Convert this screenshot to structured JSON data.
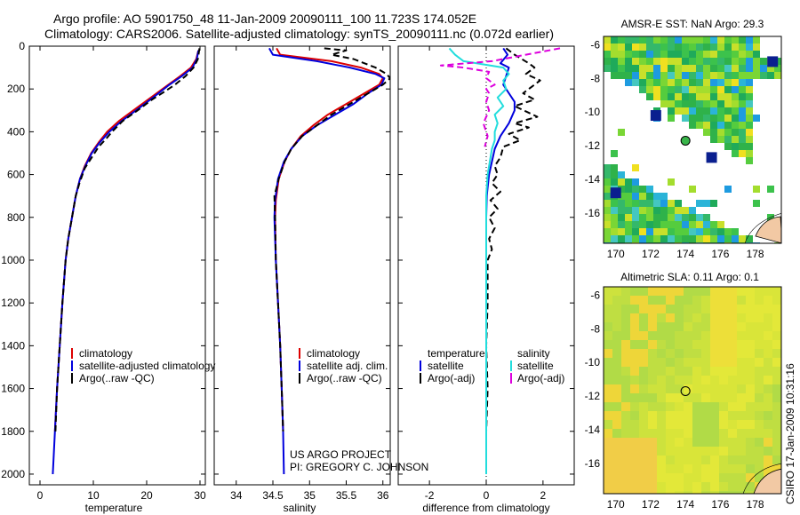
{
  "header": {
    "title_line1": "Argo profile: AO 5901750_48 11-Jan-2009 20090111_100 11.723S 174.052E",
    "title_line2": "Climatology: CARS2006. Satellite-adjusted climatology: synTS_20090111.nc (0.072d earlier)"
  },
  "side_stamp": "CSIRO 17-Jan-2009 10:31:16",
  "project": {
    "line1": "US ARGO PROJECT",
    "line2": "PI: GREGORY C. JOHNSON"
  },
  "colors": {
    "clim": "#dd0000",
    "sat": "#0000dd",
    "argo": "#000000",
    "cyan": "#22dddd",
    "magenta": "#dd00dd"
  },
  "chart_data": [
    {
      "type": "line",
      "id": "temperature",
      "xlabel": "temperature",
      "xlim": [
        -2,
        31
      ],
      "ylim": [
        2050,
        0
      ],
      "xticks": [
        "0",
        "10",
        "20",
        "30"
      ],
      "yticks": [
        "0",
        "200",
        "400",
        "600",
        "800",
        "1000",
        "1200",
        "1400",
        "1600",
        "1800",
        "2000"
      ],
      "legend": [
        "climatology",
        "satellite-adjusted climatology",
        "Argo(..raw -QC)"
      ],
      "series": [
        {
          "name": "climatology",
          "style": "clim",
          "points": [
            [
              29.7,
              20
            ],
            [
              29.3,
              60
            ],
            [
              28.3,
              100
            ],
            [
              26.3,
              140
            ],
            [
              23.8,
              185
            ],
            [
              20.8,
              240
            ],
            [
              17.5,
              300
            ],
            [
              14.8,
              350
            ],
            [
              12.6,
              400
            ],
            [
              11.0,
              450
            ],
            [
              9.6,
              500
            ],
            [
              8.4,
              560
            ],
            [
              7.5,
              620
            ],
            [
              6.7,
              700
            ],
            [
              6.0,
              800
            ],
            [
              5.3,
              900
            ],
            [
              4.8,
              1000
            ],
            [
              4.2,
              1200
            ],
            [
              3.7,
              1400
            ],
            [
              3.2,
              1600
            ],
            [
              2.8,
              1800
            ]
          ]
        },
        {
          "name": "satellite-adjusted climatology",
          "style": "sat",
          "points": [
            [
              29.7,
              20
            ],
            [
              29.4,
              60
            ],
            [
              28.6,
              100
            ],
            [
              26.6,
              140
            ],
            [
              24.0,
              185
            ],
            [
              21.2,
              240
            ],
            [
              18.0,
              300
            ],
            [
              15.3,
              350
            ],
            [
              13.0,
              400
            ],
            [
              11.2,
              450
            ],
            [
              9.7,
              500
            ],
            [
              8.5,
              560
            ],
            [
              7.5,
              620
            ],
            [
              6.7,
              700
            ],
            [
              6.0,
              800
            ],
            [
              5.3,
              900
            ],
            [
              4.8,
              1000
            ],
            [
              4.2,
              1200
            ],
            [
              3.7,
              1400
            ],
            [
              3.2,
              1600
            ],
            [
              2.8,
              1800
            ],
            [
              2.4,
              2000
            ]
          ]
        },
        {
          "name": "Argo(..raw -QC)",
          "style": "argo",
          "points": [
            [
              29.9,
              10
            ],
            [
              29.6,
              60
            ],
            [
              28.8,
              100
            ],
            [
              27.3,
              140
            ],
            [
              25.3,
              180
            ],
            [
              23.5,
              210
            ],
            [
              21.0,
              250
            ],
            [
              18.3,
              300
            ],
            [
              15.5,
              350
            ],
            [
              13.5,
              400
            ],
            [
              12.5,
              430
            ],
            [
              11.0,
              470
            ],
            [
              9.7,
              520
            ],
            [
              8.4,
              570
            ],
            [
              7.4,
              640
            ],
            [
              6.7,
              700
            ],
            [
              6.0,
              800
            ],
            [
              5.3,
              900
            ],
            [
              4.8,
              1000
            ],
            [
              4.2,
              1200
            ],
            [
              3.7,
              1400
            ],
            [
              3.2,
              1600
            ],
            [
              2.9,
              1800
            ]
          ]
        }
      ]
    },
    {
      "type": "line",
      "id": "salinity",
      "xlabel": "salinity",
      "xlim": [
        33.7,
        36.1
      ],
      "ylim": [
        2050,
        0
      ],
      "xticks": [
        "34",
        "34.5",
        "35",
        "35.5",
        "36"
      ],
      "legend": [
        "climatology",
        "satellite adj. clim.",
        "Argo(..raw -QC)"
      ],
      "series": [
        {
          "name": "climatology",
          "style": "clim",
          "points": [
            [
              34.55,
              10
            ],
            [
              34.6,
              40
            ],
            [
              35.3,
              70
            ],
            [
              35.7,
              100
            ],
            [
              35.95,
              130
            ],
            [
              36.0,
              150
            ],
            [
              35.95,
              180
            ],
            [
              35.75,
              220
            ],
            [
              35.5,
              270
            ],
            [
              35.25,
              320
            ],
            [
              35.05,
              370
            ],
            [
              34.88,
              420
            ],
            [
              34.75,
              480
            ],
            [
              34.66,
              540
            ],
            [
              34.58,
              620
            ],
            [
              34.54,
              720
            ],
            [
              34.53,
              800
            ],
            [
              34.54,
              1000
            ],
            [
              34.57,
              1200
            ],
            [
              34.6,
              1400
            ],
            [
              34.62,
              1600
            ],
            [
              34.64,
              1800
            ]
          ]
        },
        {
          "name": "satellite adj. clim.",
          "style": "sat",
          "points": [
            [
              34.45,
              10
            ],
            [
              34.5,
              40
            ],
            [
              35.1,
              70
            ],
            [
              35.55,
              100
            ],
            [
              35.9,
              130
            ],
            [
              36.02,
              150
            ],
            [
              35.98,
              180
            ],
            [
              35.8,
              220
            ],
            [
              35.6,
              270
            ],
            [
              35.35,
              320
            ],
            [
              35.1,
              370
            ],
            [
              34.9,
              420
            ],
            [
              34.75,
              480
            ],
            [
              34.65,
              540
            ],
            [
              34.57,
              620
            ],
            [
              34.53,
              720
            ],
            [
              34.52,
              800
            ],
            [
              34.54,
              1000
            ],
            [
              34.57,
              1200
            ],
            [
              34.6,
              1400
            ],
            [
              34.62,
              1600
            ],
            [
              34.64,
              1800
            ],
            [
              34.65,
              2000
            ]
          ]
        },
        {
          "name": "Argo(..raw -QC)",
          "style": "argo",
          "points": [
            [
              35.2,
              10
            ],
            [
              35.5,
              20
            ],
            [
              35.3,
              40
            ],
            [
              35.6,
              60
            ],
            [
              35.9,
              100
            ],
            [
              36.05,
              130
            ],
            [
              36.1,
              150
            ],
            [
              36.0,
              180
            ],
            [
              35.9,
              200
            ],
            [
              35.75,
              230
            ],
            [
              35.55,
              270
            ],
            [
              35.3,
              320
            ],
            [
              35.1,
              370
            ],
            [
              34.9,
              420
            ],
            [
              34.75,
              480
            ],
            [
              34.66,
              540
            ],
            [
              34.58,
              620
            ],
            [
              34.52,
              700
            ],
            [
              34.53,
              800
            ],
            [
              34.54,
              1000
            ],
            [
              34.57,
              1200
            ],
            [
              34.6,
              1400
            ],
            [
              34.62,
              1600
            ],
            [
              34.64,
              1800
            ]
          ]
        }
      ]
    },
    {
      "type": "line",
      "id": "difference",
      "xlabel": "difference from climatology",
      "xlim": [
        -3.1,
        3.1
      ],
      "ylim": [
        2050,
        0
      ],
      "xticks": [
        "-2",
        "0",
        "2"
      ],
      "legend_headers": [
        "temperature",
        "salinity"
      ],
      "legend": [
        "satellite",
        "Argo(-adj)",
        "satellite",
        "Argo(-adj)"
      ],
      "series": [
        {
          "name": "temperature satellite",
          "style": "sat",
          "points": [
            [
              0.6,
              10
            ],
            [
              0.75,
              40
            ],
            [
              0.5,
              80
            ],
            [
              0.8,
              100
            ],
            [
              0.7,
              140
            ],
            [
              0.6,
              180
            ],
            [
              0.8,
              220
            ],
            [
              1.0,
              260
            ],
            [
              1.0,
              300
            ],
            [
              0.8,
              360
            ],
            [
              0.5,
              420
            ],
            [
              0.3,
              480
            ],
            [
              0.2,
              540
            ],
            [
              0.1,
              600
            ],
            [
              0.02,
              700
            ],
            [
              0.0,
              800
            ],
            [
              0.0,
              1000
            ],
            [
              0.0,
              1200
            ],
            [
              0.0,
              1400
            ],
            [
              0.0,
              1600
            ],
            [
              0.0,
              1800
            ],
            [
              0.0,
              2000
            ]
          ]
        },
        {
          "name": "temperature Argo(-adj)",
          "style": "argo",
          "points": [
            [
              0.7,
              10
            ],
            [
              1.0,
              40
            ],
            [
              1.5,
              80
            ],
            [
              1.7,
              100
            ],
            [
              1.4,
              130
            ],
            [
              1.9,
              160
            ],
            [
              1.6,
              190
            ],
            [
              1.3,
              220
            ],
            [
              1.7,
              250
            ],
            [
              1.0,
              280
            ],
            [
              1.8,
              330
            ],
            [
              1.0,
              360
            ],
            [
              1.5,
              380
            ],
            [
              0.8,
              410
            ],
            [
              1.2,
              440
            ],
            [
              0.6,
              470
            ],
            [
              0.5,
              520
            ],
            [
              0.3,
              560
            ],
            [
              0.4,
              600
            ],
            [
              0.2,
              640
            ],
            [
              0.5,
              680
            ],
            [
              0.15,
              720
            ],
            [
              0.4,
              760
            ],
            [
              0.1,
              800
            ],
            [
              0.3,
              850
            ],
            [
              0.1,
              900
            ],
            [
              0.2,
              950
            ],
            [
              0.05,
              1000
            ],
            [
              0.05,
              1200
            ],
            [
              0.0,
              1400
            ],
            [
              0.05,
              1600
            ],
            [
              0.0,
              1800
            ]
          ]
        },
        {
          "name": "salinity satellite",
          "style": "cyan",
          "points": [
            [
              -1.3,
              10
            ],
            [
              -1.1,
              40
            ],
            [
              -0.8,
              70
            ],
            [
              0.6,
              100
            ],
            [
              0.8,
              130
            ],
            [
              0.6,
              160
            ],
            [
              0.7,
              200
            ],
            [
              0.4,
              240
            ],
            [
              0.6,
              280
            ],
            [
              0.3,
              320
            ],
            [
              0.4,
              360
            ],
            [
              0.3,
              400
            ],
            [
              0.3,
              440
            ],
            [
              0.2,
              480
            ],
            [
              0.15,
              520
            ],
            [
              0.1,
              560
            ],
            [
              0.05,
              600
            ],
            [
              0.0,
              700
            ],
            [
              0.0,
              800
            ],
            [
              0.0,
              1000
            ],
            [
              0.0,
              1200
            ],
            [
              0.0,
              1400
            ],
            [
              0.0,
              1600
            ],
            [
              0.0,
              1800
            ],
            [
              0.0,
              2000
            ]
          ]
        },
        {
          "name": "salinity Argo(-adj)",
          "style": "magenta",
          "points": [
            [
              2.6,
              10
            ],
            [
              1.4,
              40
            ],
            [
              0.2,
              70
            ],
            [
              -1.6,
              90
            ],
            [
              -0.8,
              100
            ],
            [
              0.1,
              120
            ],
            [
              0.0,
              150
            ],
            [
              0.3,
              180
            ],
            [
              0.0,
              200
            ],
            [
              0.1,
              220
            ],
            [
              0.0,
              260
            ],
            [
              0.1,
              300
            ],
            [
              -0.1,
              360
            ],
            [
              0.05,
              420
            ],
            [
              -0.05,
              470
            ]
          ]
        }
      ]
    },
    {
      "type": "heatmap",
      "id": "sst",
      "title": "AMSR-E SST: NaN Argo: 29.3",
      "xlim": [
        169.3,
        179.5
      ],
      "ylim": [
        -17.8,
        -5.5
      ],
      "xticks": [
        "170",
        "172",
        "174",
        "176",
        "178"
      ],
      "yticks": [
        "-6",
        "-8",
        "-10",
        "-12",
        "-14",
        "-16"
      ],
      "float_position": [
        174.0,
        -11.7
      ]
    },
    {
      "type": "heatmap",
      "id": "sla",
      "title": "Altimetric SLA: 0.11 Argo: 0.1",
      "xlim": [
        169.3,
        179.5
      ],
      "ylim": [
        -17.8,
        -5.5
      ],
      "xticks": [
        "170",
        "172",
        "174",
        "176",
        "178"
      ],
      "yticks": [
        "-6",
        "-8",
        "-10",
        "-12",
        "-14",
        "-16"
      ],
      "float_position": [
        174.0,
        -11.7
      ]
    }
  ]
}
